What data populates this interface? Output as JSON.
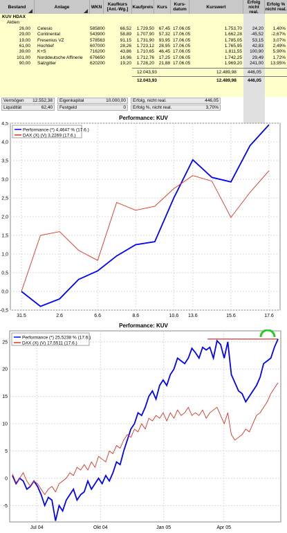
{
  "table": {
    "headers": [
      "Bestand",
      "Anlage",
      "WKN",
      "Kaufkurs [Anl.-Wg.]",
      "Kaufpreis",
      "Kurs",
      "Kurs-datum",
      "Kurswert",
      "Erfolg nicht real.",
      "Erfolg % nicht real."
    ],
    "group": "KUV HDAX",
    "subgroup": "Aktien",
    "rows": [
      {
        "bestand": "26,00",
        "anlage": "Celesio",
        "wkn": "585800",
        "kaufkurs": "66,52",
        "kaufpreis": "1.729,50",
        "kurs": "67,45",
        "datum": "17.06.05",
        "kurswert": "1.753,70",
        "erfolg": "24,20",
        "erfolg_pct": "1,40%"
      },
      {
        "bestand": "29,00",
        "anlage": "Continental",
        "wkn": "543900",
        "kaufkurs": "58,89",
        "kaufpreis": "1.707,90",
        "kurs": "57,32",
        "datum": "17.06.05",
        "kurswert": "1.662,28",
        "erfolg": "-45,52",
        "erfolg_pct": "-2,67%"
      },
      {
        "bestand": "19,00",
        "anlage": "Fresenius VZ",
        "wkn": "578563",
        "kaufkurs": "91,15",
        "kaufpreis": "1.731,90",
        "kurs": "93,95",
        "datum": "17.06.05",
        "kurswert": "1.785,05",
        "erfolg": "53,15",
        "erfolg_pct": "3,07%"
      },
      {
        "bestand": "61,00",
        "anlage": "Hochtief",
        "wkn": "607000",
        "kaufkurs": "28,26",
        "kaufpreis": "1.723,12",
        "kurs": "28,95",
        "datum": "17.06.05",
        "kurswert": "1.765,95",
        "erfolg": "42,83",
        "erfolg_pct": "2,49%"
      },
      {
        "bestand": "39,00",
        "anlage": "K+S",
        "wkn": "716200",
        "kaufkurs": "43,86",
        "kaufpreis": "1.710,65",
        "kurs": "46,45",
        "datum": "17.06.05",
        "kurswert": "1.811,55",
        "erfolg": "100,90",
        "erfolg_pct": "5,90%"
      },
      {
        "bestand": "101,00",
        "anlage": "Norddeutsche Affinerie",
        "wkn": "676650",
        "kaufkurs": "16,96",
        "kaufpreis": "1.712,76",
        "kurs": "17,25",
        "datum": "17.06.05",
        "kurswert": "1.742,25",
        "erfolg": "29,49",
        "erfolg_pct": "1,72%"
      },
      {
        "bestand": "90,00",
        "anlage": "Salzgitter",
        "wkn": "620200",
        "kaufkurs": "19,20",
        "kaufpreis": "1.728,20",
        "kurs": "21,88",
        "datum": "17.06.05",
        "kurswert": "1.969,20",
        "erfolg": "241,00",
        "erfolg_pct": "13,95%"
      }
    ],
    "subtotal": {
      "kaufpreis": "12.043,93",
      "kurswert": "12.489,98",
      "erfolg": "446,05"
    },
    "total": {
      "kaufpreis": "12.043,93",
      "kurswert": "12.489,98",
      "erfolg": "446,05"
    }
  },
  "summary": {
    "vermoegen_label": "Vermögen",
    "vermoegen": "12.552,38",
    "liquiditaet_label": "Liquidität",
    "liquiditaet": "62,40",
    "eigenkapital_label": "Eigenkapital",
    "eigenkapital": "10.000,00",
    "festgeld_label": "Festgeld",
    "festgeld": "0",
    "erfolg_label": "Erfolg, nicht real.",
    "erfolg": "446,05",
    "erfolg_pct_label": "Erfolg %, nicht real.",
    "erfolg_pct": "3,70%"
  },
  "chart_data": [
    {
      "type": "line",
      "title": "Performance: KUV",
      "categories": [
        "31.5",
        "1.6",
        "2.6",
        "3.6",
        "6.6",
        "7.6",
        "8.6",
        "9.6",
        "10.6",
        "13.6",
        "14.6",
        "15.6",
        "16.6",
        "17.6"
      ],
      "xticks": [
        "31.5",
        "2.6",
        "6.6",
        "8.6",
        "10.6",
        "13.6",
        "15.6",
        "17.6"
      ],
      "ylim": [
        -0.5,
        4.5
      ],
      "yticks": [
        "-0,5",
        "0,0",
        "0,5",
        "1,0",
        "1,5",
        "2,0",
        "2,5",
        "3,0",
        "3,5",
        "4,0",
        "4,5"
      ],
      "grid": true,
      "legend_position": "top-left",
      "series": [
        {
          "name": "Performance (*) 4,4647 % (17.6.)",
          "color": "#0000ff",
          "values": [
            0.0,
            -0.4,
            -0.2,
            0.32,
            0.55,
            0.95,
            1.25,
            1.33,
            2.5,
            3.52,
            3.05,
            2.93,
            3.9,
            4.46
          ]
        },
        {
          "name": "DAX (X) (V) 3,2269 (17.6.)",
          "color": "#e03020",
          "values": [
            0.0,
            1.5,
            1.6,
            1.1,
            0.83,
            2.38,
            2.17,
            2.28,
            2.75,
            3.1,
            2.95,
            1.98,
            2.65,
            3.23
          ]
        }
      ]
    },
    {
      "type": "line",
      "title": "Performance: KUV",
      "xticks": [
        "Jul 04",
        "Okt 04",
        "Jan 05",
        "Apr 05"
      ],
      "ylim": [
        -8,
        27
      ],
      "yticks": [
        "-5",
        "0",
        "5",
        "10",
        "15",
        "20",
        "25"
      ],
      "grid": true,
      "legend_position": "top-left",
      "series": [
        {
          "name": "Performance (*) 25,5238 % (17.6.)",
          "color": "#0000ff",
          "values": [
            0.5,
            -1,
            0,
            -0.5,
            -2,
            -1.5,
            -0.5,
            -1.5,
            -3,
            -5,
            -3.5,
            -4,
            -7.8,
            -5,
            -6,
            -4,
            -3,
            -2,
            -4,
            -3,
            -2.5,
            -0.5,
            -2,
            -1,
            0,
            -1,
            0.5,
            -0.5,
            1,
            3,
            2.5,
            5,
            7,
            9,
            10,
            12,
            11.5,
            13,
            15,
            16,
            14.5,
            17,
            18,
            17,
            19,
            20,
            22,
            21.5,
            21,
            22,
            23.8,
            23,
            22,
            24,
            23.5,
            24,
            22,
            25.2,
            24.5,
            22,
            25,
            19,
            17.5,
            16,
            15.5,
            14,
            15,
            16,
            17,
            18.5,
            21,
            21.5,
            22,
            24,
            25.5
          ]
        },
        {
          "name": "DAX (X) (V) 17,5511 (17.6.)",
          "color": "#e03020",
          "values": [
            0.8,
            -0.8,
            0,
            1,
            -0.5,
            -1.5,
            -0.5,
            -1,
            -2,
            -3,
            -2,
            -1.5,
            -2.5,
            -1,
            -0.5,
            0,
            1,
            0.5,
            2,
            1.5,
            2.5,
            1.5,
            3,
            2,
            4,
            3.5,
            3,
            5,
            4.5,
            6,
            5.5,
            7,
            8,
            7.5,
            9,
            8.5,
            10,
            9,
            11,
            10.5,
            11.5,
            11,
            12,
            10.5,
            12,
            11,
            12.5,
            11.5,
            12,
            13,
            11.5,
            12,
            11.5,
            12.5,
            11,
            12,
            12.5,
            13,
            11.5,
            10,
            12,
            8,
            7,
            7.5,
            8,
            9,
            8.5,
            10,
            11.5,
            12,
            13,
            14,
            15.5,
            16.5,
            17.5
          ]
        }
      ],
      "hline": 25.5
    }
  ]
}
